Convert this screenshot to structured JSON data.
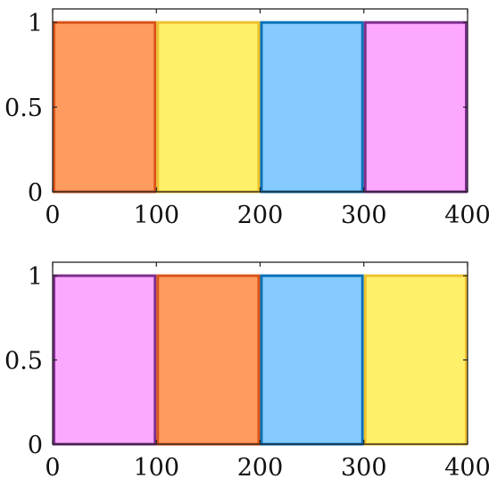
{
  "chart_data": [
    {
      "type": "bar",
      "xlim": [
        0,
        400
      ],
      "ylim": [
        0,
        1.08
      ],
      "xticks": [
        0,
        100,
        200,
        300,
        400
      ],
      "xtick_labels": [
        "0",
        "100",
        "200",
        "300",
        "400"
      ],
      "yticks": [
        0,
        0.5,
        1
      ],
      "ytick_labels": [
        "0",
        "0.5",
        "1"
      ],
      "bars": [
        {
          "x0": 0,
          "x1": 100,
          "value": 1,
          "fill": "#FF9B5F",
          "stroke": "#D9541A"
        },
        {
          "x0": 100,
          "x1": 200,
          "value": 1,
          "fill": "#FFF06A",
          "stroke": "#EEC12F"
        },
        {
          "x0": 200,
          "x1": 300,
          "value": 1,
          "fill": "#86CBFF",
          "stroke": "#0B72B8"
        },
        {
          "x0": 300,
          "x1": 400,
          "value": 1,
          "fill": "#FDA8FF",
          "stroke": "#7E2F8E"
        }
      ]
    },
    {
      "type": "bar",
      "xlim": [
        0,
        400
      ],
      "ylim": [
        0,
        1.08
      ],
      "xticks": [
        0,
        100,
        200,
        300,
        400
      ],
      "xtick_labels": [
        "0",
        "100",
        "200",
        "300",
        "400"
      ],
      "yticks": [
        0,
        0.5,
        1
      ],
      "ytick_labels": [
        "0",
        "0.5",
        "1"
      ],
      "bars": [
        {
          "x0": 0,
          "x1": 100,
          "value": 1,
          "fill": "#FDA8FF",
          "stroke": "#7E2F8E"
        },
        {
          "x0": 100,
          "x1": 200,
          "value": 1,
          "fill": "#FF9B5F",
          "stroke": "#D9541A"
        },
        {
          "x0": 200,
          "x1": 300,
          "value": 1,
          "fill": "#86CBFF",
          "stroke": "#0B72B8"
        },
        {
          "x0": 300,
          "x1": 400,
          "value": 1,
          "fill": "#FFF06A",
          "stroke": "#EEC12F"
        }
      ]
    }
  ]
}
